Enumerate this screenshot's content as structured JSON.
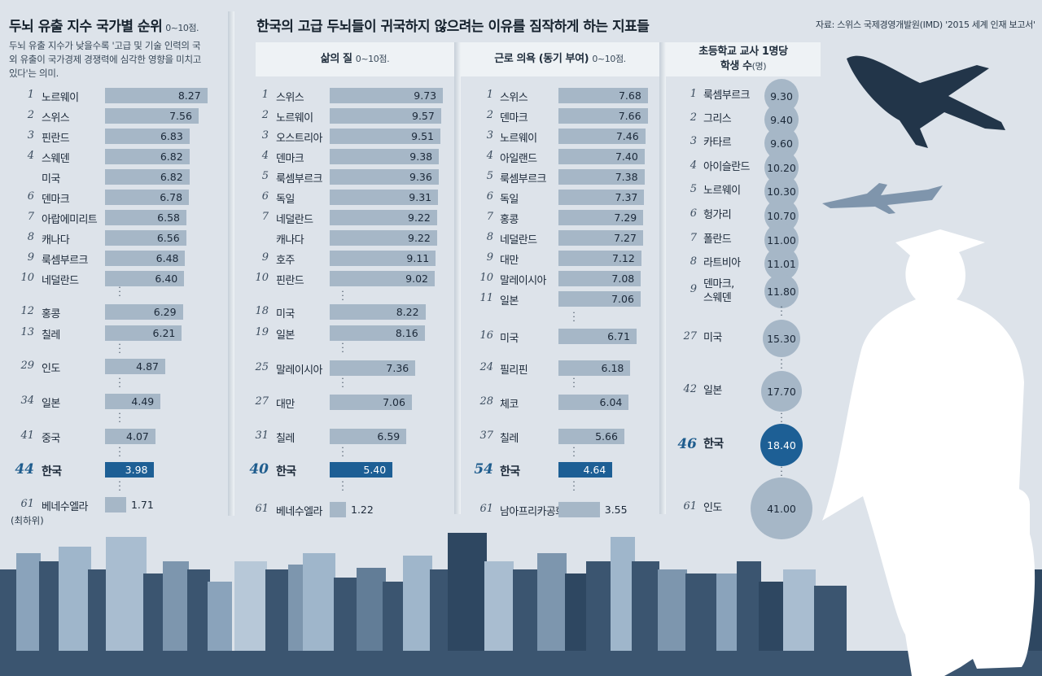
{
  "panel1": {
    "title": "두뇌 유출 지수 국가별 순위",
    "unit": "0~10점.",
    "desc": "두뇌 유출 지수가 낮을수록 '고급 및 기술 인력의 국외 유출이 국가경제 경쟁력에 심각한 영향을 미치고 있다'는 의미.",
    "footnote": "(최하위)"
  },
  "main_title": "한국의 고급 두뇌들이 귀국하지 않으려는 이유를 짐작하게 하는 지표들",
  "source": "자료: 스위스 국제경영개발원(IMD) '2015 세계 인재 보고서'",
  "col2": {
    "title": "삶의 질",
    "unit": "0~10점."
  },
  "col3": {
    "title": "근로 의욕 (동기 부여)",
    "unit": "0~10점."
  },
  "col4": {
    "title_line1": "초등학교 교사 1명당",
    "title_line2": "학생 수",
    "unit": "(명)"
  },
  "colors": {
    "bar": "#a6b7c7",
    "highlight": "#1d5f95",
    "skyline": "#3b5570",
    "background": "#dde3ea"
  },
  "chart_data": [
    {
      "type": "bar",
      "title": "두뇌 유출 지수 국가별 순위",
      "unit": "0~10점",
      "ylim": [
        0,
        10
      ],
      "ranks": [
        "1",
        "2",
        "3",
        "4",
        "",
        "6",
        "7",
        "8",
        "9",
        "10",
        "12",
        "13",
        "29",
        "34",
        "41",
        "44",
        "61"
      ],
      "categories": [
        "노르웨이",
        "스위스",
        "핀란드",
        "스웨덴",
        "미국",
        "덴마크",
        "아랍에미리트",
        "캐나다",
        "룩셈부르크",
        "네덜란드",
        "홍콩",
        "칠레",
        "인도",
        "일본",
        "중국",
        "한국",
        "베네수엘라"
      ],
      "values": [
        8.27,
        7.56,
        6.83,
        6.82,
        6.82,
        6.78,
        6.58,
        6.56,
        6.48,
        6.4,
        6.29,
        6.21,
        4.87,
        4.49,
        4.07,
        3.98,
        1.71
      ],
      "labels": [
        "8.27",
        "7.56",
        "6.83",
        "6.82",
        "6.82",
        "6.78",
        "6.58",
        "6.56",
        "6.48",
        "6.40",
        "6.29",
        "6.21",
        "4.87",
        "4.49",
        "4.07",
        "3.98",
        "1.71"
      ],
      "highlight": "한국"
    },
    {
      "type": "bar",
      "title": "삶의 질",
      "unit": "0~10점",
      "ylim": [
        0,
        10
      ],
      "ranks": [
        "1",
        "2",
        "3",
        "4",
        "5",
        "6",
        "7",
        "",
        "9",
        "10",
        "18",
        "19",
        "25",
        "27",
        "31",
        "40",
        "61"
      ],
      "categories": [
        "스위스",
        "노르웨이",
        "오스트리아",
        "덴마크",
        "룩셈부르크",
        "독일",
        "네덜란드",
        "캐나다",
        "호주",
        "핀란드",
        "미국",
        "일본",
        "말레이시아",
        "대만",
        "칠레",
        "한국",
        "베네수엘라"
      ],
      "values": [
        9.73,
        9.57,
        9.51,
        9.38,
        9.36,
        9.31,
        9.22,
        9.22,
        9.11,
        9.02,
        8.22,
        8.16,
        7.36,
        7.06,
        6.59,
        5.4,
        1.22
      ],
      "labels": [
        "9.73",
        "9.57",
        "9.51",
        "9.38",
        "9.36",
        "9.31",
        "9.22",
        "9.22",
        "9.11",
        "9.02",
        "8.22",
        "8.16",
        "7.36",
        "7.06",
        "6.59",
        "5.40",
        "1.22"
      ],
      "highlight": "한국"
    },
    {
      "type": "bar",
      "title": "근로 의욕 (동기 부여)",
      "unit": "0~10점",
      "ylim": [
        0,
        10
      ],
      "ranks": [
        "1",
        "2",
        "3",
        "4",
        "5",
        "6",
        "7",
        "8",
        "9",
        "10",
        "11",
        "16",
        "24",
        "28",
        "37",
        "54",
        "61"
      ],
      "categories": [
        "스위스",
        "덴마크",
        "노르웨이",
        "아일랜드",
        "룩셈부르크",
        "독일",
        "홍콩",
        "네덜란드",
        "대만",
        "말레이시아",
        "일본",
        "미국",
        "필리핀",
        "체코",
        "칠레",
        "한국",
        "남아프리카공화국"
      ],
      "values": [
        7.68,
        7.66,
        7.46,
        7.4,
        7.38,
        7.37,
        7.29,
        7.27,
        7.12,
        7.08,
        7.06,
        6.71,
        6.18,
        6.04,
        5.66,
        4.64,
        3.55
      ],
      "labels": [
        "7.68",
        "7.66",
        "7.46",
        "7.40",
        "7.38",
        "7.37",
        "7.29",
        "7.27",
        "7.12",
        "7.08",
        "7.06",
        "6.71",
        "6.18",
        "6.04",
        "5.66",
        "4.64",
        "3.55"
      ],
      "highlight": "한국"
    },
    {
      "type": "bubble",
      "title": "초등학교 교사 1명당 학생 수",
      "unit": "명",
      "ranks": [
        "1",
        "2",
        "3",
        "4",
        "5",
        "6",
        "7",
        "8",
        "9",
        "27",
        "42",
        "46",
        "61"
      ],
      "categories": [
        "룩셈부르크",
        "그리스",
        "카타르",
        "아이슬란드",
        "노르웨이",
        "헝가리",
        "폴란드",
        "라트비아",
        "덴마크, 스웨덴",
        "미국",
        "일본",
        "한국",
        "인도"
      ],
      "values": [
        9.3,
        9.4,
        9.6,
        10.2,
        10.3,
        10.7,
        11.0,
        11.01,
        11.8,
        15.3,
        17.7,
        18.4,
        41.0
      ],
      "labels": [
        "9.30",
        "9.40",
        "9.60",
        "10.20",
        "10.30",
        "10.70",
        "11.00",
        "11.01",
        "11.80",
        "15.30",
        "17.70",
        "18.40",
        "41.00"
      ],
      "highlight": "한국"
    }
  ]
}
